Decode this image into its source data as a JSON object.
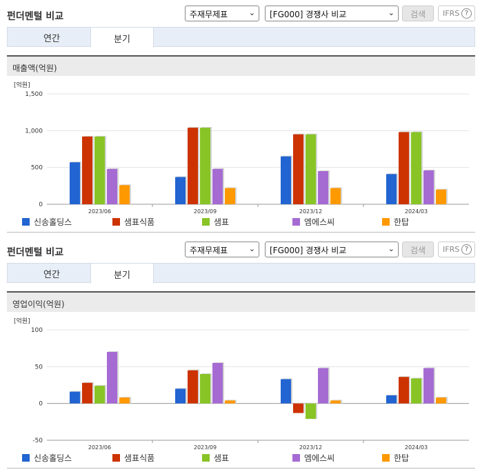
{
  "panels": [
    {
      "title": "펀더멘털 비교",
      "select1": "주재무제표",
      "select2": "[FG000] 경쟁사 비교",
      "search_label": "검색",
      "ifrs_label": "IFRS",
      "ifrs_help": "?",
      "tabs": [
        {
          "label": "연간"
        },
        {
          "label": "분기"
        }
      ],
      "section_title": "매출액(억원)"
    },
    {
      "title": "펀더멘털 비교",
      "select1": "주재무제표",
      "select2": "[FG000] 경쟁사 비교",
      "search_label": "검색",
      "ifrs_label": "IFRS",
      "ifrs_help": "?",
      "tabs": [
        {
          "label": "연간"
        },
        {
          "label": "분기"
        }
      ],
      "section_title": "영업이익(억원)"
    }
  ],
  "chart_data": [
    {
      "type": "bar",
      "unit": "[억원]",
      "categories": [
        "2023/06",
        "2023/09",
        "2023/12",
        "2024/03"
      ],
      "ylim": [
        0,
        1500
      ],
      "yticks": [
        0,
        500,
        1000,
        1500
      ],
      "ytick_labels": [
        "0",
        "500",
        "1,000",
        "1,500"
      ],
      "grid": true,
      "legend": "bottom",
      "series": [
        {
          "name": "신송홀딩스",
          "color": "#2264d1",
          "values": [
            570,
            370,
            650,
            410
          ]
        },
        {
          "name": "샘표식품",
          "color": "#cc3300",
          "values": [
            920,
            1040,
            950,
            980
          ]
        },
        {
          "name": "샘표",
          "color": "#88c425",
          "values": [
            920,
            1040,
            950,
            980
          ]
        },
        {
          "name": "엠에스씨",
          "color": "#a66bd3",
          "values": [
            480,
            480,
            450,
            460
          ]
        },
        {
          "name": "한탑",
          "color": "#ff9900",
          "values": [
            260,
            220,
            220,
            200
          ]
        }
      ]
    },
    {
      "type": "bar",
      "unit": "[억원]",
      "categories": [
        "2023/06",
        "2023/09",
        "2023/12",
        "2024/03"
      ],
      "ylim": [
        -50,
        100
      ],
      "yticks": [
        -50,
        0,
        50,
        100
      ],
      "ytick_labels": [
        "-50",
        "0",
        "50",
        "100"
      ],
      "grid": true,
      "legend": "bottom",
      "series": [
        {
          "name": "신송홀딩스",
          "color": "#2264d1",
          "values": [
            16,
            20,
            33,
            11
          ]
        },
        {
          "name": "샘표식품",
          "color": "#cc3300",
          "values": [
            28,
            45,
            -13,
            36
          ]
        },
        {
          "name": "샘표",
          "color": "#88c425",
          "values": [
            24,
            40,
            -21,
            34
          ]
        },
        {
          "name": "엠에스씨",
          "color": "#a66bd3",
          "values": [
            70,
            55,
            48,
            48
          ]
        },
        {
          "name": "한탑",
          "color": "#ff9900",
          "values": [
            8,
            4,
            4,
            8
          ]
        }
      ]
    }
  ]
}
